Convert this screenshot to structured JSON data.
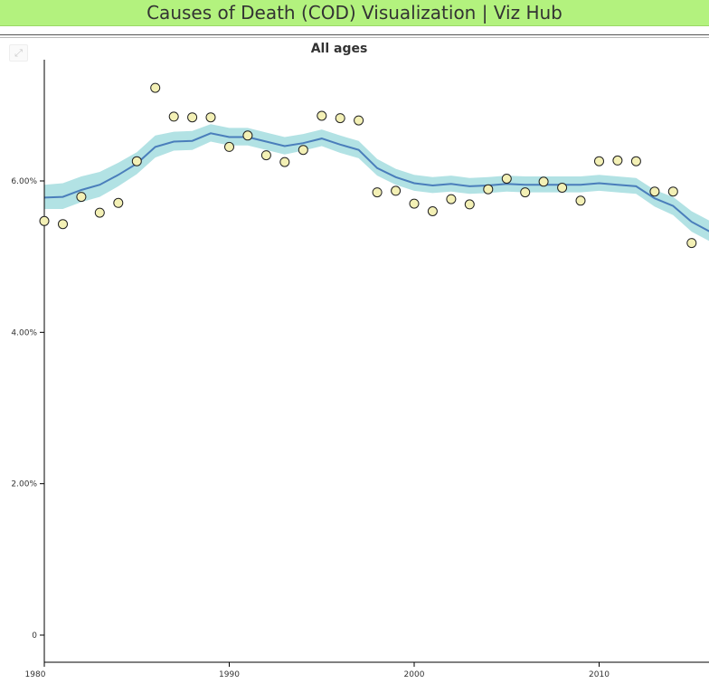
{
  "header": {
    "title": "Causes of Death (COD) Visualization | Viz Hub",
    "background": "#b3f27e"
  },
  "controls": {
    "expand_icon": "expand-arrows-icon"
  },
  "chart_data": {
    "type": "line",
    "title": "All ages",
    "xlabel": "",
    "ylabel": "",
    "xlim": [
      1980,
      2016
    ],
    "ylim": [
      0,
      7.6
    ],
    "x_ticks": [
      1980,
      1990,
      2000,
      2010
    ],
    "x_tick_labels": [
      "1980",
      "1990",
      "2000",
      "2010"
    ],
    "y_ticks": [
      0,
      2,
      4,
      6
    ],
    "y_tick_labels": [
      "0",
      "2.00%",
      "4.00%",
      "6.00%"
    ],
    "grid": false,
    "colors": {
      "line": "#4a7ebb",
      "band": "#b2e2e4",
      "points_fill": "#f3f0b5",
      "points_stroke": "#222222"
    },
    "series": [
      {
        "kind": "estimate",
        "x": [
          1980,
          1981,
          1982,
          1983,
          1984,
          1985,
          1986,
          1987,
          1988,
          1989,
          1990,
          1991,
          1992,
          1993,
          1994,
          1995,
          1996,
          1997,
          1998,
          1999,
          2000,
          2001,
          2002,
          2003,
          2004,
          2005,
          2006,
          2007,
          2008,
          2009,
          2010,
          2011,
          2012,
          2013,
          2014,
          2015,
          2016
        ],
        "values": [
          5.78,
          5.79,
          5.88,
          5.95,
          6.08,
          6.23,
          6.45,
          6.52,
          6.53,
          6.63,
          6.58,
          6.58,
          6.52,
          6.46,
          6.5,
          6.56,
          6.48,
          6.41,
          6.17,
          6.05,
          5.97,
          5.94,
          5.96,
          5.93,
          5.94,
          5.96,
          5.95,
          5.95,
          5.95,
          5.95,
          5.97,
          5.95,
          5.93,
          5.77,
          5.67,
          5.46,
          5.33
        ],
        "lower": [
          5.63,
          5.63,
          5.72,
          5.79,
          5.93,
          6.09,
          6.31,
          6.4,
          6.41,
          6.52,
          6.47,
          6.47,
          6.41,
          6.35,
          6.4,
          6.46,
          6.37,
          6.3,
          6.07,
          5.95,
          5.87,
          5.84,
          5.86,
          5.83,
          5.84,
          5.86,
          5.85,
          5.85,
          5.85,
          5.85,
          5.87,
          5.85,
          5.83,
          5.66,
          5.55,
          5.33,
          5.2
        ],
        "upper": [
          5.95,
          5.97,
          6.06,
          6.12,
          6.24,
          6.38,
          6.6,
          6.65,
          6.66,
          6.75,
          6.7,
          6.7,
          6.64,
          6.58,
          6.62,
          6.68,
          6.6,
          6.53,
          6.29,
          6.16,
          6.08,
          6.05,
          6.07,
          6.04,
          6.05,
          6.07,
          6.06,
          6.06,
          6.06,
          6.06,
          6.08,
          6.06,
          6.04,
          5.88,
          5.79,
          5.6,
          5.47
        ]
      },
      {
        "kind": "observed",
        "x": [
          1980,
          1981,
          1982,
          1983,
          1984,
          1985,
          1986,
          1987,
          1988,
          1989,
          1990,
          1991,
          1992,
          1993,
          1994,
          1995,
          1996,
          1997,
          1998,
          1999,
          2000,
          2001,
          2002,
          2003,
          2004,
          2005,
          2006,
          2007,
          2008,
          2009,
          2010,
          2011,
          2012,
          2013,
          2014,
          2015
        ],
        "values": [
          5.47,
          5.43,
          5.79,
          5.58,
          5.71,
          6.26,
          7.23,
          6.85,
          6.84,
          6.84,
          6.45,
          6.6,
          6.34,
          6.25,
          6.41,
          6.86,
          6.83,
          6.8,
          5.85,
          5.87,
          5.7,
          5.6,
          5.76,
          5.69,
          5.89,
          6.03,
          5.85,
          5.99,
          5.91,
          5.74,
          6.26,
          6.27,
          6.26,
          5.86,
          5.86,
          5.18
        ]
      }
    ]
  }
}
